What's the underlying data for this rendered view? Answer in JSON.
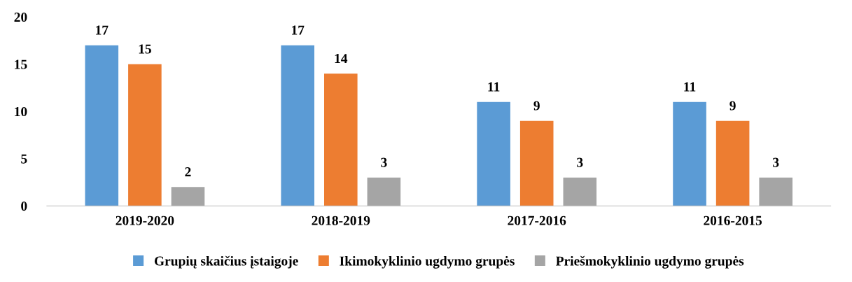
{
  "chart_data": {
    "type": "bar",
    "categories": [
      "2019-2020",
      "2018-2019",
      "2017-2016",
      "2016-2015"
    ],
    "series": [
      {
        "name": "Grupių skaičius įstaigoje",
        "color": "#5b9bd5",
        "values": [
          17,
          17,
          11,
          11
        ]
      },
      {
        "name": "Ikimokyklinio ugdymo grupės",
        "color": "#ed7d31",
        "values": [
          15,
          14,
          9,
          9
        ]
      },
      {
        "name": "Priešmokyklinio ugdymo grupės",
        "color": "#a5a5a5",
        "values": [
          2,
          3,
          3,
          3
        ]
      }
    ],
    "ylim": [
      0,
      20
    ],
    "yticks": [
      0,
      5,
      10,
      15,
      20
    ],
    "grid": false,
    "legend": "bottom",
    "data_labels": true
  }
}
